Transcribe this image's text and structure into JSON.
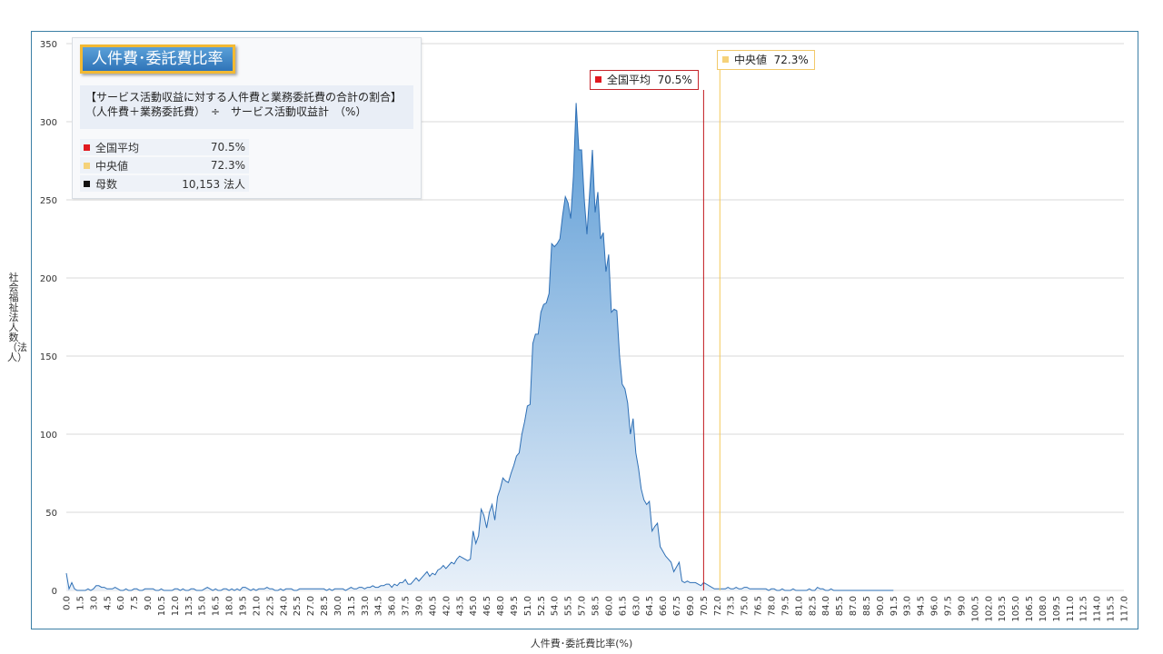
{
  "colors": {
    "area_top": "#5b9bd5",
    "area_bottom": "#e8f0f9",
    "line": "#2e6fb5",
    "avg_line": "#c0161c",
    "median_line": "#f5c85a",
    "frame": "#3b7fa5",
    "grid": "#d9d9d9"
  },
  "infobox": {
    "title": "人件費･委託費比率",
    "formula_line1": "【サービス活動収益に対する人件費と業務委託費の合計の割合】",
    "formula_line2": "（人件費＋業務委託費）　÷　サービス活動収益計　（%）",
    "stats": [
      {
        "label": "全国平均",
        "value": "70.5%",
        "marker": "avg"
      },
      {
        "label": "中央値",
        "value": "72.3%",
        "marker": "med"
      },
      {
        "label": "母数",
        "value": "10,153  法人",
        "marker": "cnt"
      }
    ]
  },
  "callouts": {
    "avg": {
      "label": "全国平均",
      "value": "70.5%",
      "x": 70.5
    },
    "median": {
      "label": "中央値",
      "value": "72.3%",
      "x": 72.3
    }
  },
  "chart_data": {
    "type": "area",
    "xlabel": "人件費･委託費比率(%)",
    "ylabel": "社会福祉法人数（法人）",
    "ylim": [
      0,
      350
    ],
    "yticks": [
      0,
      50,
      100,
      150,
      200,
      250,
      300,
      350
    ],
    "xlim": [
      0,
      117
    ],
    "x_step": 0.3,
    "x_tick_step": 1.5,
    "grid": true,
    "legend": "none",
    "values": [
      11,
      1,
      5,
      1,
      0,
      0,
      0,
      0,
      1,
      0,
      1,
      3,
      3,
      2,
      2,
      1,
      1,
      1,
      2,
      1,
      0,
      0,
      1,
      0,
      0,
      1,
      1,
      0,
      0,
      1,
      1,
      1,
      1,
      0,
      0,
      1,
      0,
      0,
      0,
      0,
      1,
      1,
      0,
      1,
      0,
      0,
      1,
      1,
      0,
      0,
      0,
      1,
      2,
      1,
      0,
      1,
      0,
      0,
      1,
      1,
      0,
      1,
      0,
      1,
      0,
      2,
      2,
      1,
      0,
      1,
      0,
      1,
      1,
      1,
      2,
      1,
      1,
      0,
      0,
      1,
      0,
      1,
      1,
      1,
      0,
      0,
      1,
      1,
      1,
      1,
      1,
      1,
      1,
      1,
      1,
      1,
      0,
      1,
      0,
      1,
      1,
      1,
      1,
      0,
      1,
      2,
      1,
      1,
      2,
      2,
      1,
      2,
      2,
      3,
      2,
      2,
      3,
      3,
      4,
      4,
      2,
      4,
      3,
      5,
      5,
      7,
      4,
      4,
      6,
      8,
      6,
      8,
      10,
      12,
      9,
      11,
      10,
      13,
      14,
      16,
      14,
      16,
      18,
      17,
      20,
      22,
      21,
      20,
      19,
      20,
      38,
      30,
      35,
      52,
      48,
      40,
      50,
      55,
      45,
      60,
      65,
      72,
      70,
      69,
      75,
      80,
      86,
      88,
      100,
      108,
      118,
      119,
      158,
      164,
      164,
      178,
      183,
      184,
      190,
      222,
      220,
      222,
      225,
      240,
      252,
      248,
      238,
      265,
      312,
      282,
      282,
      250,
      228,
      255,
      282,
      242,
      255,
      225,
      229,
      204,
      215,
      178,
      180,
      179,
      150,
      132,
      129,
      120,
      100,
      110,
      88,
      78,
      65,
      58,
      55,
      57,
      38,
      41,
      43,
      28,
      25,
      22,
      20,
      18,
      12,
      15,
      18,
      6,
      5,
      6,
      5,
      5,
      5,
      4,
      3,
      5,
      4,
      3,
      2,
      1,
      1,
      1,
      1,
      1,
      2,
      1,
      1,
      2,
      1,
      1,
      2,
      2,
      1,
      1,
      1,
      1,
      1,
      1,
      1,
      0,
      1,
      1,
      0,
      0,
      1,
      0,
      0,
      0,
      1,
      0,
      0,
      0,
      0,
      0,
      1,
      0,
      0,
      2,
      1,
      1,
      0,
      0,
      1,
      0,
      0,
      0,
      0,
      0,
      0,
      0,
      0,
      0,
      0,
      0,
      0,
      0,
      0,
      0,
      0,
      0,
      0,
      0,
      0,
      0,
      0,
      0
    ]
  }
}
